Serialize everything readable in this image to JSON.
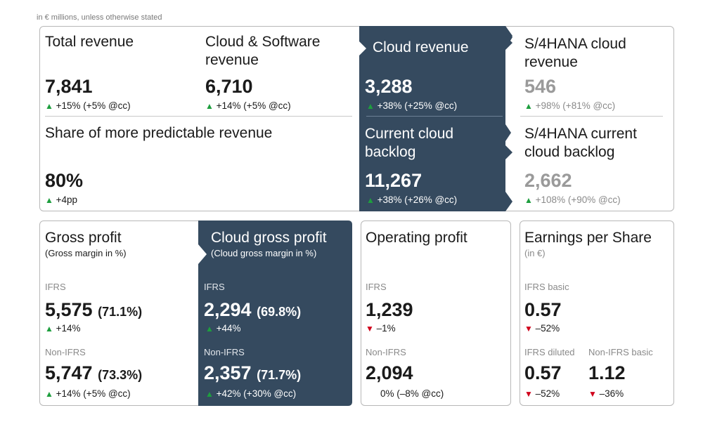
{
  "note": "in € millions, unless otherwise stated",
  "top": {
    "total_revenue": {
      "title": "Total revenue",
      "value": "7,841",
      "change": "+15% (+5% @cc)"
    },
    "cloud_software": {
      "title1": "Cloud & Software",
      "title2": "revenue",
      "value": "6,710",
      "change": "+14% (+5% @cc)"
    },
    "cloud_revenue": {
      "title": "Cloud revenue",
      "value": "3,288",
      "change": "+38% (+25% @cc)"
    },
    "s4_cloud_revenue": {
      "title1": "S/4HANA cloud",
      "title2": "revenue",
      "value": "546",
      "change": "+98% (+81% @cc)"
    },
    "predictable": {
      "title": "Share of more predictable revenue",
      "value": "80%",
      "change": "+4pp"
    },
    "cloud_backlog": {
      "title1": "Current cloud",
      "title2": "backlog",
      "value": "11,267",
      "change": "+38% (+26% @cc)"
    },
    "s4_backlog": {
      "title1": "S/4HANA current",
      "title2": "cloud backlog",
      "value": "2,662",
      "change": "+108% (+90% @cc)"
    }
  },
  "gross_profit": {
    "title": "Gross profit",
    "subtitle": "(Gross margin in %)",
    "ifrs_label": "IFRS",
    "ifrs_value": "5,575",
    "ifrs_margin": "(71.1%)",
    "ifrs_change": "+14%",
    "non_label": "Non-IFRS",
    "non_value": "5,747",
    "non_margin": "(73.3%)",
    "non_change": "+14% (+5% @cc)"
  },
  "cloud_gross_profit": {
    "title": "Cloud gross profit",
    "subtitle": "(Cloud gross margin in %)",
    "ifrs_label": "IFRS",
    "ifrs_value": "2,294",
    "ifrs_margin": "(69.8%)",
    "ifrs_change": "+44%",
    "non_label": "Non-IFRS",
    "non_value": "2,357",
    "non_margin": "(71.7%)",
    "non_change": "+42% (+30% @cc)"
  },
  "operating_profit": {
    "title": "Operating profit",
    "ifrs_label": "IFRS",
    "ifrs_value": "1,239",
    "ifrs_change": "–1%",
    "non_label": "Non-IFRS",
    "non_value": "2,094",
    "non_change": "0% (–8% @cc)"
  },
  "eps": {
    "title": "Earnings per Share",
    "subtitle": "(in €)",
    "basic_label": "IFRS basic",
    "basic_value": "0.57",
    "basic_change": "–52%",
    "diluted_label": "IFRS diluted",
    "diluted_value": "0.57",
    "diluted_change": "–52%",
    "non_basic_label": "Non-IFRS basic",
    "non_basic_value": "1.12",
    "non_basic_change": "–36%"
  },
  "colors": {
    "dark_panel": "#354a5f",
    "up": "#1e9e3e",
    "down": "#d0021b"
  },
  "icons": {
    "up": "triangle-up-icon",
    "down": "triangle-down-icon"
  }
}
